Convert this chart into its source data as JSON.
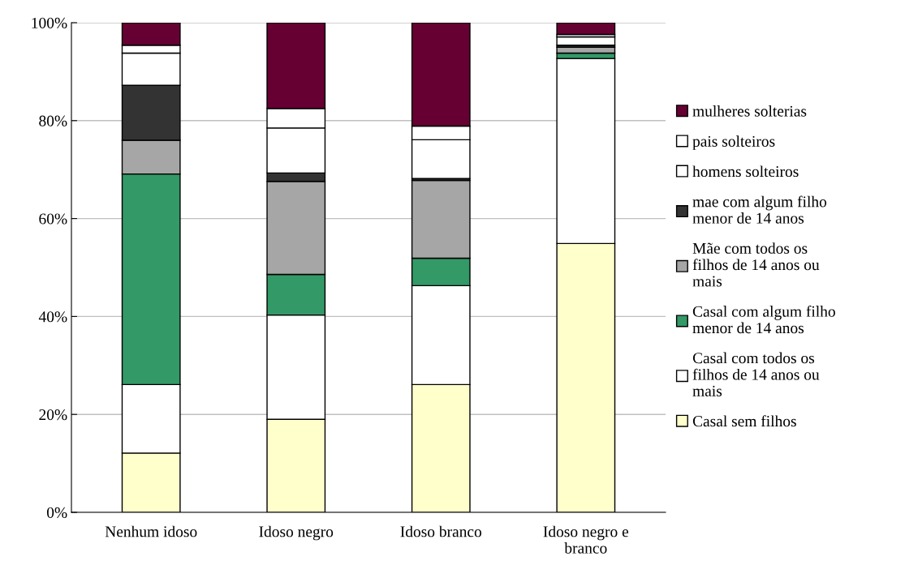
{
  "chart_data": {
    "type": "bar",
    "stacked": true,
    "categories": [
      "Nenhum idoso",
      "Idoso negro",
      "Idoso branco",
      "Idoso negro e branco"
    ],
    "series": [
      {
        "name": "Casal sem filhos",
        "color": "#ffffcc",
        "values": [
          12.1,
          19.0,
          26.1,
          54.9
        ]
      },
      {
        "name": "Casal com todos os filhos de 14 anos ou mais",
        "color": "#ffffff",
        "values": [
          14.0,
          21.3,
          20.2,
          37.8
        ]
      },
      {
        "name": "Casal com algum filho menor de 14 anos",
        "color": "#339966",
        "values": [
          43.0,
          8.3,
          5.6,
          1.1
        ]
      },
      {
        "name": "Mãe com todos os filhos de 14 anos ou mais",
        "color": "#a6a6a6",
        "values": [
          6.9,
          19.0,
          15.9,
          1.2
        ]
      },
      {
        "name": "mae com algum filho menor de 14 anos",
        "color": "#333333",
        "values": [
          11.2,
          1.7,
          0.4,
          0.4
        ]
      },
      {
        "name": "homens solteiros",
        "color": "#ffffff",
        "values": [
          6.6,
          9.2,
          7.9,
          1.7
        ]
      },
      {
        "name": "pais solteiros",
        "color": "#ffffff",
        "values": [
          1.6,
          4.0,
          2.8,
          0.5
        ]
      },
      {
        "name": "mulheres solterias",
        "color": "#660033",
        "values": [
          4.6,
          17.5,
          21.1,
          2.4
        ]
      }
    ],
    "ylim": [
      0,
      100
    ],
    "yticks": [
      {
        "value": 0,
        "label": "0%"
      },
      {
        "value": 20,
        "label": "20%"
      },
      {
        "value": 40,
        "label": "40%"
      },
      {
        "value": 60,
        "label": "60%"
      },
      {
        "value": 80,
        "label": "80%"
      },
      {
        "value": 100,
        "label": "100%"
      }
    ],
    "grid": "y",
    "legend": "right"
  }
}
